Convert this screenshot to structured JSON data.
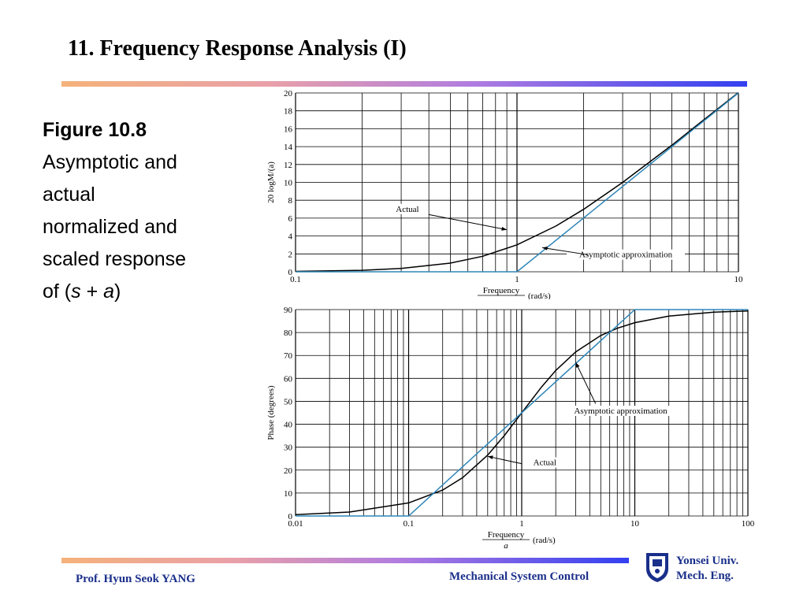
{
  "slide": {
    "title": "11. Frequency Response Analysis (I)",
    "caption": {
      "figure": "Figure 10.8",
      "text_lines": [
        "Asymptotic and",
        "actual",
        "normalized and",
        "scaled response"
      ],
      "last_prefix": "of (",
      "last_s": "s",
      "last_plus": " + ",
      "last_a": "a",
      "last_suffix": ")"
    },
    "footer": {
      "author": "Prof. Hyun Seok YANG",
      "course": "Mechanical System Control",
      "univ_line1": "Yonsei Univ.",
      "univ_line2": "Mech. Eng."
    },
    "colors": {
      "title": "#000000",
      "footer_text": "#1a2f8a",
      "actual": "#000000",
      "asymptote": "#2e86b8"
    }
  },
  "chart_data": [
    {
      "type": "line",
      "xscale": "log",
      "xlim": [
        0.1,
        10
      ],
      "ylim": [
        0,
        20
      ],
      "xticks": [
        "0.1",
        "1",
        "10"
      ],
      "yticks": [
        "0",
        "2",
        "4",
        "6",
        "8",
        "10",
        "12",
        "14",
        "16",
        "18",
        "20"
      ],
      "ylabel": "20 logM/(a)",
      "xlabel_num": "Frequency",
      "xlabel_den": "a",
      "xlabel_unit": "(rad/s)",
      "grid": true,
      "series": [
        {
          "name": "Actual",
          "x": [
            0.1,
            0.2,
            0.3,
            0.5,
            0.7,
            1,
            1.5,
            2,
            3,
            5,
            7,
            10
          ],
          "y": [
            0.04,
            0.17,
            0.37,
            0.97,
            1.74,
            3.01,
            5.12,
            6.99,
            10.0,
            14.15,
            17.03,
            20.04
          ]
        },
        {
          "name": "Asymptotic approximation",
          "x": [
            0.1,
            1,
            10
          ],
          "y": [
            0,
            0,
            20
          ]
        }
      ],
      "annotations": [
        {
          "text": "Actual",
          "x": 0.85,
          "y": 5.8
        },
        {
          "text": "Asymptotic approximation",
          "x": 1.6,
          "y": 1.6
        }
      ]
    },
    {
      "type": "line",
      "xscale": "log",
      "xlim": [
        0.01,
        100
      ],
      "ylim": [
        0,
        90
      ],
      "xticks": [
        "0.01",
        "0.1",
        "1",
        "10",
        "100"
      ],
      "yticks": [
        "0",
        "10",
        "20",
        "30",
        "40",
        "50",
        "60",
        "70",
        "80",
        "90"
      ],
      "ylabel": "Phase (degrees)",
      "xlabel_num": "Frequency",
      "xlabel_den": "a",
      "xlabel_unit": "(rad/s)",
      "grid": true,
      "series": [
        {
          "name": "Actual",
          "x": [
            0.01,
            0.03,
            0.1,
            0.2,
            0.3,
            0.5,
            0.7,
            1,
            1.5,
            2,
            3,
            5,
            7,
            10,
            20,
            50,
            100
          ],
          "y": [
            0.57,
            1.72,
            5.71,
            11.31,
            16.7,
            26.57,
            34.99,
            45,
            56.31,
            63.43,
            71.57,
            78.69,
            81.87,
            84.29,
            87.14,
            88.85,
            89.43
          ]
        },
        {
          "name": "Asymptotic approximation",
          "x": [
            0.01,
            0.1,
            10,
            100
          ],
          "y": [
            0,
            0,
            90,
            90
          ]
        }
      ],
      "annotations": [
        {
          "text": "Asymptotic approximation",
          "x": 2.2,
          "y": 44
        },
        {
          "text": "Actual",
          "x": 1.3,
          "y": 22
        }
      ]
    }
  ]
}
